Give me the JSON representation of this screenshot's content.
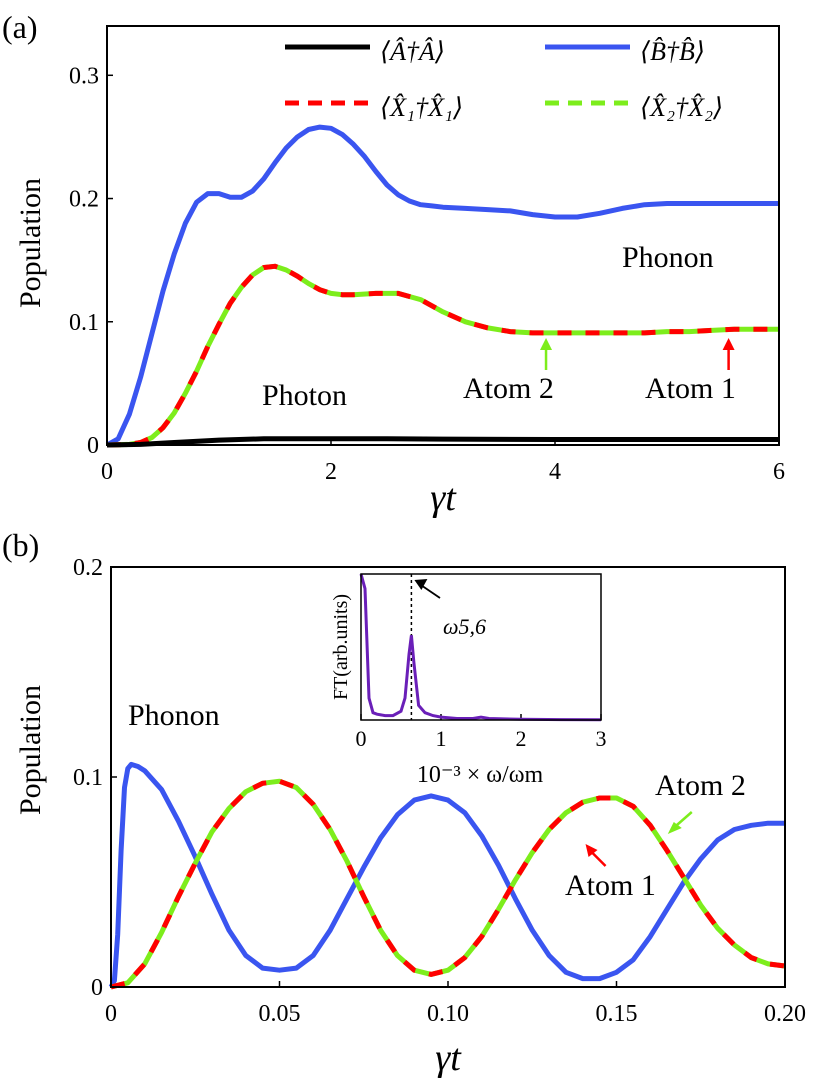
{
  "colors": {
    "photon": "#000000",
    "phonon": "#3a55f0",
    "atom1": "#ff0000",
    "atom2": "#7ded1c",
    "inset": "#6a1fb8"
  },
  "chart_data": [
    {
      "panel_label": "(a)",
      "type": "line",
      "xlabel": "γt",
      "ylabel": "Population",
      "xlim": [
        0,
        6
      ],
      "ylim": [
        0,
        0.34
      ],
      "xticks": [
        "0",
        "2",
        "4",
        "6"
      ],
      "yticks": [
        "0",
        "0.1",
        "0.2",
        "0.3"
      ],
      "legend": [
        {
          "label": "⟨Â†Â⟩",
          "style": "solid",
          "color": "#000000"
        },
        {
          "label": "⟨B̂†B̂⟩",
          "style": "solid",
          "color": "#3a55f0"
        },
        {
          "label": "⟨X̂₁†X̂₁⟩",
          "style": "dashed",
          "color": "#ff0000"
        },
        {
          "label": "⟨X̂₂†X̂₂⟩",
          "style": "dashed",
          "color": "#7ded1c"
        }
      ],
      "annotations": {
        "phonon": "Phonon",
        "photon": "Photon",
        "atom2": "Atom 2",
        "atom1": "Atom 1",
        "atom2_arrow_x": 3.92,
        "atom1_arrow_x": 5.55
      },
      "series": [
        {
          "name": "⟨Â†Â⟩ (Photon)",
          "x": [
            0,
            0.3,
            0.6,
            1.0,
            1.4,
            2.0,
            2.5,
            3.0,
            4.0,
            5.0,
            6.0
          ],
          "values": [
            0,
            0.0005,
            0.002,
            0.004,
            0.005,
            0.005,
            0.005,
            0.0048,
            0.0045,
            0.0045,
            0.0045
          ]
        },
        {
          "name": "⟨B̂†B̂⟩ (Phonon)",
          "x": [
            0,
            0.1,
            0.2,
            0.3,
            0.4,
            0.5,
            0.6,
            0.7,
            0.8,
            0.9,
            1.0,
            1.1,
            1.2,
            1.3,
            1.4,
            1.5,
            1.6,
            1.7,
            1.8,
            1.9,
            2.0,
            2.1,
            2.2,
            2.3,
            2.4,
            2.5,
            2.6,
            2.7,
            2.8,
            2.9,
            3.0,
            3.2,
            3.4,
            3.6,
            3.8,
            4.0,
            4.2,
            4.4,
            4.6,
            4.8,
            5.0,
            5.2,
            5.4,
            5.6,
            5.8,
            6.0
          ],
          "values": [
            0,
            0.005,
            0.025,
            0.055,
            0.09,
            0.125,
            0.155,
            0.18,
            0.197,
            0.204,
            0.204,
            0.201,
            0.201,
            0.206,
            0.216,
            0.229,
            0.241,
            0.25,
            0.256,
            0.258,
            0.257,
            0.252,
            0.244,
            0.234,
            0.222,
            0.211,
            0.203,
            0.198,
            0.195,
            0.194,
            0.193,
            0.192,
            0.191,
            0.19,
            0.187,
            0.185,
            0.185,
            0.188,
            0.192,
            0.195,
            0.196,
            0.196,
            0.196,
            0.196,
            0.196,
            0.196
          ]
        },
        {
          "name": "⟨X̂₁†X̂₁⟩ = ⟨X̂₂†X̂₂⟩ (Atoms)",
          "x": [
            0,
            0.2,
            0.3,
            0.4,
            0.5,
            0.6,
            0.7,
            0.8,
            0.9,
            1.0,
            1.1,
            1.2,
            1.3,
            1.4,
            1.5,
            1.6,
            1.7,
            1.8,
            1.9,
            2.0,
            2.1,
            2.2,
            2.4,
            2.6,
            2.8,
            3.0,
            3.2,
            3.4,
            3.6,
            3.8,
            4.0,
            4.2,
            4.4,
            4.6,
            4.8,
            5.0,
            5.2,
            5.4,
            5.6,
            5.8,
            6.0
          ],
          "values": [
            0,
            0.0005,
            0.002,
            0.006,
            0.014,
            0.026,
            0.042,
            0.06,
            0.08,
            0.098,
            0.115,
            0.128,
            0.138,
            0.144,
            0.145,
            0.142,
            0.137,
            0.131,
            0.126,
            0.123,
            0.122,
            0.122,
            0.123,
            0.123,
            0.118,
            0.108,
            0.1,
            0.095,
            0.092,
            0.091,
            0.091,
            0.091,
            0.091,
            0.091,
            0.091,
            0.092,
            0.092,
            0.093,
            0.094,
            0.094,
            0.094
          ]
        }
      ]
    },
    {
      "panel_label": "(b)",
      "type": "line",
      "xlabel": "γt",
      "ylabel": "Population",
      "xlim": [
        0,
        0.2
      ],
      "ylim": [
        0,
        0.2
      ],
      "xticks": [
        "0",
        "0.05",
        "0.10",
        "0.15",
        "0.20"
      ],
      "yticks": [
        "0",
        "0.1",
        "0.2"
      ],
      "annotations": {
        "phonon": "Phonon",
        "atom2": "Atom 2",
        "atom1": "Atom 1",
        "atom2_arrow_x": 0.167,
        "atom1_arrow_x": 0.142
      },
      "series": [
        {
          "name": "Phonon",
          "x": [
            0,
            0.001,
            0.002,
            0.003,
            0.004,
            0.005,
            0.006,
            0.008,
            0.01,
            0.015,
            0.02,
            0.025,
            0.03,
            0.035,
            0.04,
            0.045,
            0.05,
            0.055,
            0.06,
            0.065,
            0.07,
            0.075,
            0.08,
            0.085,
            0.09,
            0.095,
            0.1,
            0.105,
            0.11,
            0.115,
            0.12,
            0.125,
            0.13,
            0.135,
            0.14,
            0.145,
            0.15,
            0.155,
            0.16,
            0.165,
            0.17,
            0.175,
            0.18,
            0.185,
            0.19,
            0.195,
            0.2
          ],
          "values": [
            0,
            0.003,
            0.025,
            0.065,
            0.095,
            0.104,
            0.106,
            0.105,
            0.103,
            0.094,
            0.079,
            0.062,
            0.044,
            0.027,
            0.015,
            0.009,
            0.008,
            0.009,
            0.015,
            0.027,
            0.042,
            0.057,
            0.071,
            0.082,
            0.089,
            0.091,
            0.089,
            0.083,
            0.072,
            0.058,
            0.042,
            0.027,
            0.015,
            0.007,
            0.004,
            0.004,
            0.007,
            0.013,
            0.024,
            0.037,
            0.05,
            0.061,
            0.07,
            0.075,
            0.077,
            0.078,
            0.078
          ]
        },
        {
          "name": "Atoms 1 & 2",
          "x": [
            0,
            0.005,
            0.01,
            0.015,
            0.02,
            0.025,
            0.03,
            0.035,
            0.04,
            0.045,
            0.05,
            0.055,
            0.06,
            0.065,
            0.07,
            0.075,
            0.08,
            0.085,
            0.09,
            0.095,
            0.1,
            0.105,
            0.11,
            0.115,
            0.12,
            0.125,
            0.13,
            0.135,
            0.14,
            0.145,
            0.15,
            0.155,
            0.16,
            0.165,
            0.17,
            0.175,
            0.18,
            0.185,
            0.19,
            0.195,
            0.2
          ],
          "values": [
            0,
            0.002,
            0.011,
            0.026,
            0.043,
            0.059,
            0.074,
            0.085,
            0.093,
            0.097,
            0.098,
            0.095,
            0.087,
            0.075,
            0.06,
            0.043,
            0.027,
            0.015,
            0.008,
            0.006,
            0.008,
            0.014,
            0.024,
            0.037,
            0.051,
            0.064,
            0.075,
            0.083,
            0.088,
            0.09,
            0.09,
            0.086,
            0.077,
            0.065,
            0.052,
            0.039,
            0.028,
            0.02,
            0.014,
            0.011,
            0.01
          ]
        }
      ],
      "inset": {
        "type": "line",
        "xlabel": "10⁻³ × ω/ωm",
        "ylabel": "FT(arb.units)",
        "xlim": [
          0,
          3
        ],
        "xticks": [
          "0",
          "1",
          "2",
          "3"
        ],
        "peak_label": "ω5,6",
        "peak_x": 0.63,
        "x": [
          0,
          0.05,
          0.1,
          0.15,
          0.2,
          0.3,
          0.4,
          0.5,
          0.55,
          0.6,
          0.63,
          0.66,
          0.72,
          0.8,
          0.9,
          1.0,
          1.2,
          1.4,
          1.5,
          1.6,
          2.0,
          2.5,
          3.0
        ],
        "values": [
          1.0,
          0.9,
          0.15,
          0.05,
          0.04,
          0.03,
          0.03,
          0.06,
          0.15,
          0.45,
          0.58,
          0.4,
          0.1,
          0.05,
          0.03,
          0.02,
          0.01,
          0.01,
          0.02,
          0.01,
          0.005,
          0.003,
          0.002
        ]
      }
    }
  ]
}
